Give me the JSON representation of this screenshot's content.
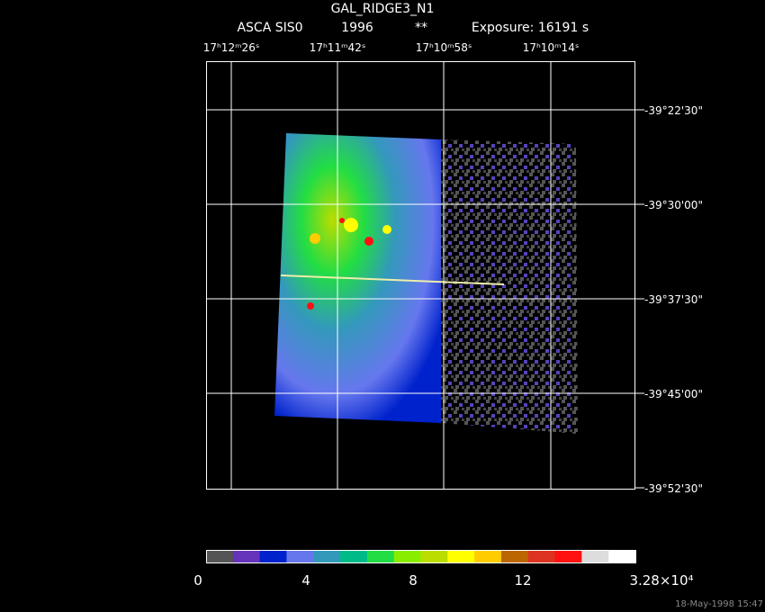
{
  "header": {
    "title": "GAL_RIDGE3_N1",
    "instrument": "ASCA SIS0",
    "year": "1996",
    "flag": "**",
    "exposure": "Exposure: 16191 s"
  },
  "ra_labels": [
    "17ʰ12ᵐ26ˢ",
    "17ʰ11ᵐ42ˢ",
    "17ʰ10ᵐ58ˢ",
    "17ʰ10ᵐ14ˢ"
  ],
  "dec_labels": [
    "-39°22'30\"",
    "-39°30'00\"",
    "-39°37'30\"",
    "-39°45'00\"",
    "-39°52'30\""
  ],
  "colorbar": {
    "colors": [
      "#555555",
      "#6633bb",
      "#0022cc",
      "#6677ee",
      "#3399bb",
      "#00bb88",
      "#22dd44",
      "#88ee00",
      "#bbdd00",
      "#ffff00",
      "#ffcc00",
      "#bb6600",
      "#dd3322",
      "#ff1111",
      "#dddddd",
      "#ffffff"
    ],
    "labels": [
      "0",
      "4",
      "8",
      "12",
      "3.28×10⁴"
    ]
  },
  "timestamp": "18-May-1998 15:47"
}
